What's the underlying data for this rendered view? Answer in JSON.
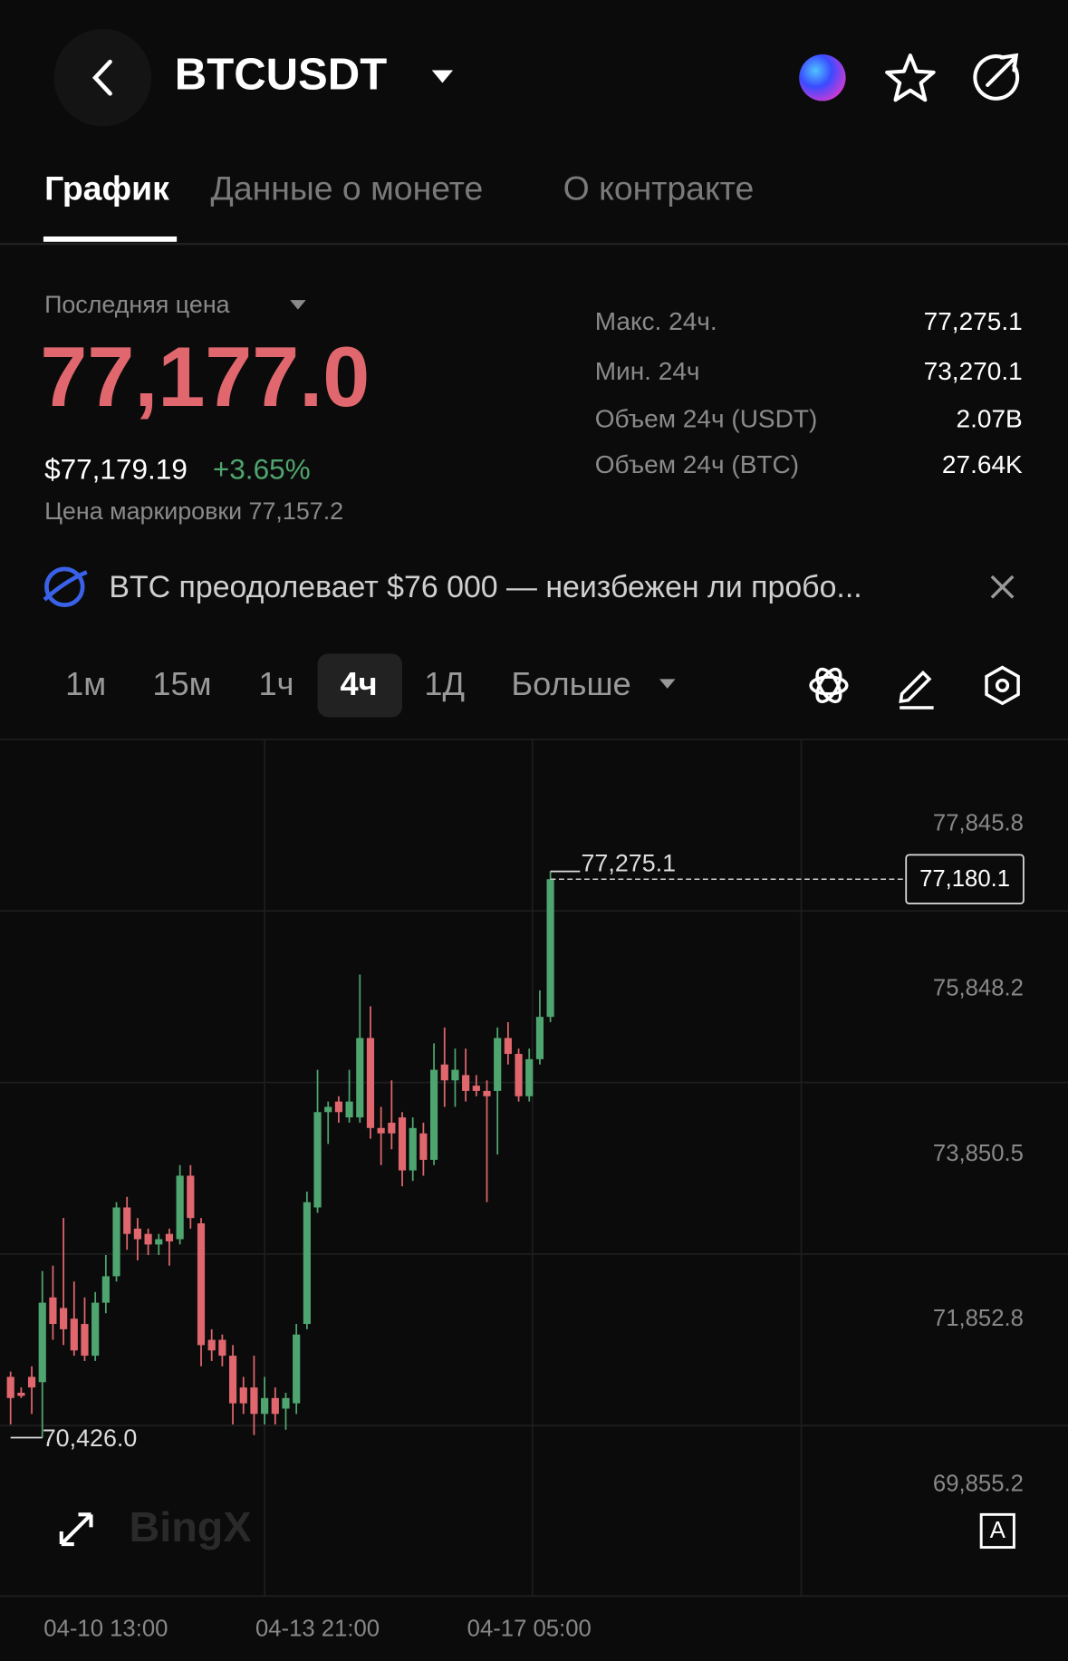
{
  "header": {
    "symbol": "BTCUSDT"
  },
  "tabs": [
    "График",
    "Данные о монете",
    "О контракте"
  ],
  "ticker": {
    "label": "Последняя цена",
    "price": "77,177.0",
    "usd": "$77,179.19",
    "change": "+3.65%",
    "mark_price": "Цена маркировки 77,157.2"
  },
  "stats": [
    [
      "Макс. 24ч.",
      "77,275.1"
    ],
    [
      "Мин. 24ч",
      "73,270.1"
    ],
    [
      "Объем 24ч (USDT)",
      "2.07B"
    ],
    [
      "Объем 24ч (BTC)",
      "27.64K"
    ]
  ],
  "news": "BTC преодолевает $76 000 — неизбежен ли пробо...",
  "timeframes": [
    "1м",
    "15м",
    "1ч",
    "4ч",
    "1Д",
    "Больше"
  ],
  "watermark": "BingX",
  "auto_button": "A",
  "chart_data": {
    "type": "candlestick",
    "categories": [
      null,
      null,
      null,
      null,
      null,
      null,
      null,
      null,
      null,
      "04-10 13:00",
      null,
      null,
      null,
      null,
      null,
      null,
      null,
      null,
      null,
      null,
      null,
      null,
      null,
      null,
      null,
      null,
      null,
      null,
      null,
      "04-13 21:00",
      null,
      null,
      null,
      null,
      null,
      null,
      null,
      null,
      null,
      null,
      null,
      null,
      null,
      null,
      null,
      null,
      null,
      null,
      null,
      "04-17 05:00",
      null,
      null
    ],
    "open": [
      71161,
      70969,
      71161,
      71097,
      72122,
      71994,
      71865,
      71801,
      71417,
      72058,
      72378,
      73210,
      72954,
      72890,
      72762,
      72890,
      72826,
      73594,
      73018,
      71609,
      71609,
      71417,
      71033,
      71033,
      70713,
      70905,
      70777,
      70841,
      71801,
      73210,
      74363,
      74491,
      74299,
      74299,
      75259,
      74171,
      74235,
      74299,
      73658,
      74106,
      73786,
      74939,
      74747,
      74811,
      74683,
      74619,
      74619,
      75259,
      75067,
      74555,
      75003,
      75515
    ],
    "high": [
      71225,
      71033,
      71289,
      72442,
      72506,
      73082,
      72314,
      72122,
      72186,
      72634,
      73274,
      73338,
      73082,
      72954,
      72890,
      72954,
      73722,
      73722,
      73082,
      71737,
      71673,
      71545,
      71161,
      71417,
      71161,
      71033,
      70969,
      71801,
      73402,
      74875,
      74491,
      74555,
      74875,
      76027,
      75643,
      74427,
      74747,
      74363,
      74299,
      74235,
      75195,
      75387,
      75131,
      75131,
      74811,
      74747,
      75387,
      75451,
      75131,
      75131,
      75835,
      77275.1
    ],
    "low": [
      70585,
      70905,
      70713,
      70426.0,
      71609,
      71545,
      71417,
      71353,
      71353,
      71930,
      72314,
      72698,
      72570,
      72634,
      72634,
      72506,
      72762,
      72954,
      71289,
      71353,
      71289,
      70585,
      70713,
      70457,
      70585,
      70585,
      70521,
      70713,
      71737,
      73146,
      73978,
      74235,
      74235,
      74235,
      74042,
      73722,
      73914,
      73466,
      73530,
      73594,
      73722,
      74427,
      74427,
      74491,
      74555,
      73274,
      73850,
      74939,
      74491,
      74491,
      74939,
      75451
    ],
    "close": [
      70905,
      70931,
      71033,
      72058,
      71801,
      71737,
      71481,
      71417,
      72058,
      72378,
      73210,
      72890,
      72826,
      72762,
      72826,
      72800,
      73594,
      73082,
      71545,
      71481,
      71417,
      70841,
      70841,
      70713,
      70905,
      70713,
      70905,
      71673,
      73274,
      74363,
      74427,
      74363,
      74491,
      75259,
      74171,
      74106,
      74106,
      73658,
      74171,
      73786,
      74875,
      74747,
      74875,
      74619,
      74619,
      74555,
      75259,
      75067,
      74555,
      75003,
      75515,
      77180.1
    ],
    "up_color": "#4fa56f",
    "down_color": "#e0676d",
    "ylim": [
      68535.9,
      78844.7
    ],
    "yticks": [
      {
        "value": 77845.8,
        "label": "77,845.8"
      },
      {
        "value": 75848.2,
        "label": "75,848.2"
      },
      {
        "value": 73850.5,
        "label": "73,850.5"
      },
      {
        "value": 71852.8,
        "label": "71,852.8"
      },
      {
        "value": 69855.2,
        "label": "69,855.2"
      }
    ],
    "high_label": {
      "value": 77275.1,
      "label": "77,275.1"
    },
    "low_label": {
      "value": 70426.0,
      "label": "70,426.0"
    },
    "last_price": {
      "value": 77180.1,
      "label": "77,180.1"
    }
  }
}
